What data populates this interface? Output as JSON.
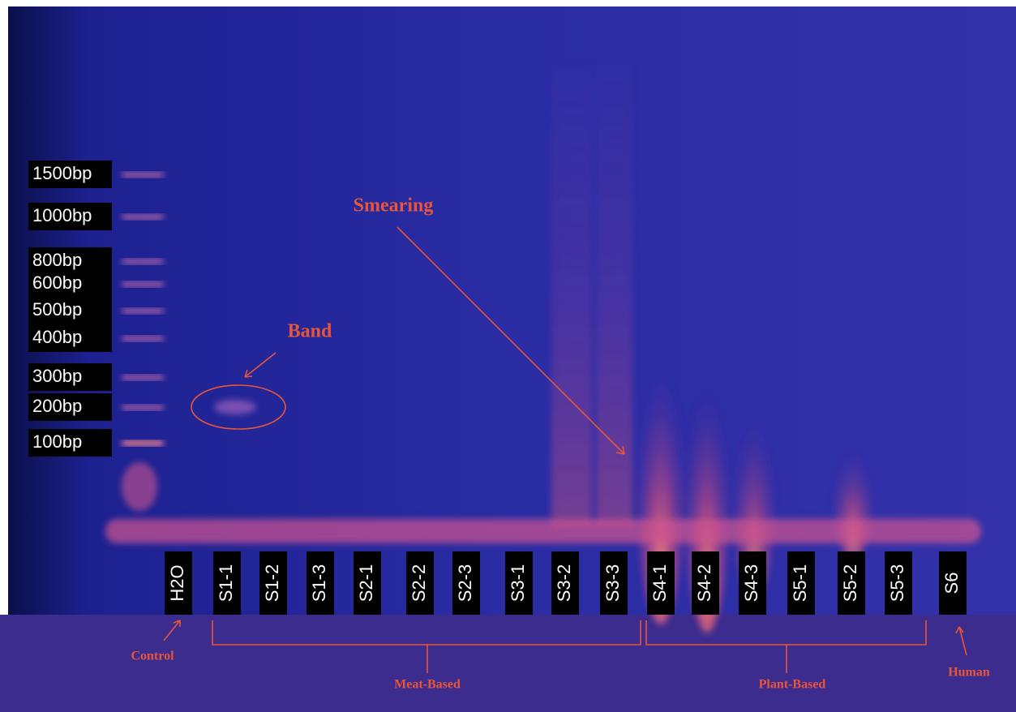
{
  "ladder": [
    "1500bp",
    "1000bp",
    "800bp",
    "600bp",
    "500bp",
    "400bp",
    "300bp",
    "200bp",
    "100bp"
  ],
  "lanes": [
    "H2O",
    "S1-1",
    "S1-2",
    "S1-3",
    "S2-1",
    "S2-2",
    "S2-3",
    "S3-1",
    "S3-2",
    "S3-3",
    "S4-1",
    "S4-2",
    "S4-3",
    "S5-1",
    "S5-2",
    "S5-3",
    "S6"
  ],
  "annotations": {
    "band": "Band",
    "smearing": "Smearing",
    "control": "Control",
    "meat": "Meat-Based",
    "plant": "Plant-Based",
    "human": "Human"
  }
}
